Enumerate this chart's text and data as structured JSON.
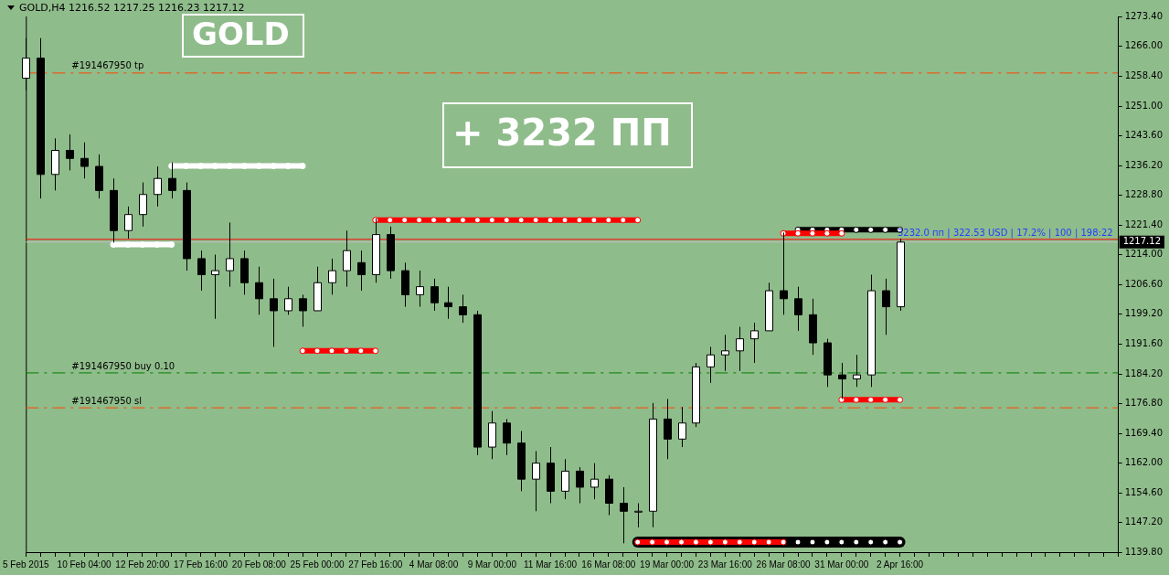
{
  "chart_data": {
    "type": "candlestick",
    "title": "GOLD,H4  1216.52 1217.25 1216.23 1217.12",
    "categories": [
      "5 Feb 2015",
      null,
      null,
      null,
      "10 Feb 04:00",
      null,
      null,
      null,
      "12 Feb 20:00",
      null,
      null,
      null,
      "17 Feb 16:00",
      null,
      null,
      null,
      "20 Feb 08:00",
      null,
      null,
      null,
      "25 Feb 00:00",
      null,
      null,
      null,
      "27 Feb 16:00",
      null,
      null,
      null,
      "4 Mar 08:00",
      null,
      null,
      null,
      "9 Mar 00:00",
      null,
      null,
      null,
      "11 Mar 16:00",
      null,
      null,
      null,
      "16 Mar 08:00",
      null,
      null,
      null,
      "19 Mar 00:00",
      null,
      null,
      null,
      "23 Mar 16:00",
      null,
      null,
      null,
      "26 Mar 08:00",
      null,
      null,
      null,
      "31 Mar 00:00",
      null,
      null,
      null,
      "2 Apr 16:00",
      null,
      null,
      null,
      null,
      null,
      null,
      null,
      null,
      null,
      null,
      null,
      null,
      null,
      null,
      null
    ],
    "ohlc": [
      [
        1258,
        1268,
        1255,
        1263
      ],
      [
        1263,
        1268,
        1228,
        1234
      ],
      [
        1234,
        1243,
        1230,
        1240
      ],
      [
        1240,
        1244,
        1235,
        1238
      ],
      [
        1238,
        1242,
        1233,
        1236
      ],
      [
        1236,
        1239,
        1228,
        1230
      ],
      [
        1230,
        1233,
        1217,
        1220
      ],
      [
        1220,
        1226,
        1218,
        1224
      ],
      [
        1224,
        1232,
        1221,
        1229
      ],
      [
        1229,
        1236,
        1226,
        1233
      ],
      [
        1233,
        1237,
        1228,
        1230
      ],
      [
        1230,
        1232,
        1210,
        1213
      ],
      [
        1213,
        1215,
        1205,
        1209
      ],
      [
        1209,
        1214,
        1198,
        1210
      ],
      [
        1210,
        1222,
        1206,
        1213
      ],
      [
        1213,
        1215,
        1204,
        1207
      ],
      [
        1207,
        1211,
        1199,
        1203
      ],
      [
        1203,
        1208,
        1191,
        1200
      ],
      [
        1200,
        1206,
        1199,
        1203
      ],
      [
        1203,
        1204,
        1196,
        1200
      ],
      [
        1200,
        1211,
        1200,
        1207
      ],
      [
        1207,
        1213,
        1204,
        1210
      ],
      [
        1210,
        1220,
        1206,
        1215
      ],
      [
        1212,
        1215,
        1205,
        1209
      ],
      [
        1209,
        1223,
        1207,
        1219
      ],
      [
        1219,
        1221,
        1208,
        1210
      ],
      [
        1210,
        1212,
        1201,
        1204
      ],
      [
        1204,
        1210,
        1201,
        1206
      ],
      [
        1206,
        1208,
        1200,
        1202
      ],
      [
        1202,
        1206,
        1198,
        1201
      ],
      [
        1201,
        1204,
        1197,
        1199
      ],
      [
        1199,
        1200,
        1164,
        1166
      ],
      [
        1166,
        1175,
        1163,
        1172
      ],
      [
        1172,
        1173,
        1164,
        1167
      ],
      [
        1167,
        1170,
        1155,
        1158
      ],
      [
        1158,
        1165,
        1150,
        1162
      ],
      [
        1162,
        1166,
        1152,
        1155
      ],
      [
        1155,
        1163,
        1153,
        1160
      ],
      [
        1160,
        1161,
        1152,
        1156
      ],
      [
        1156,
        1162,
        1153,
        1158
      ],
      [
        1158,
        1159,
        1149,
        1152
      ],
      [
        1152,
        1156,
        1142,
        1150
      ],
      [
        1150,
        1152,
        1146,
        1150
      ],
      [
        1150,
        1177,
        1146,
        1173
      ],
      [
        1173,
        1178,
        1163,
        1168
      ],
      [
        1168,
        1176,
        1166,
        1172
      ],
      [
        1172,
        1187,
        1171,
        1186
      ],
      [
        1186,
        1191,
        1182,
        1189
      ],
      [
        1189,
        1194,
        1185,
        1190
      ],
      [
        1190,
        1196,
        1185,
        1193
      ],
      [
        1193,
        1197,
        1187,
        1195
      ],
      [
        1195,
        1207,
        1195,
        1205
      ],
      [
        1205,
        1219.5,
        1199,
        1203
      ],
      [
        1203,
        1206,
        1195,
        1199
      ],
      [
        1199,
        1203,
        1189,
        1192
      ],
      [
        1192,
        1193,
        1181,
        1184
      ],
      [
        1184,
        1187,
        1178,
        1183
      ],
      [
        1183,
        1189,
        1181,
        1184
      ],
      [
        1184,
        1209,
        1181,
        1205
      ],
      [
        1205,
        1208,
        1194,
        1201
      ],
      [
        1201,
        1218,
        1200,
        1217.12
      ],
      null,
      null,
      null,
      null,
      null,
      null,
      null,
      null,
      null,
      null,
      null,
      null,
      null,
      null,
      null
    ],
    "series": [
      {
        "type": "line",
        "color": "#000000",
        "values": [
          null,
          null,
          null,
          null,
          null,
          null,
          null,
          null,
          null,
          null,
          null,
          null,
          null,
          null,
          null,
          null,
          null,
          null,
          null,
          null,
          null,
          null,
          null,
          null,
          null,
          null,
          null,
          null,
          null,
          null,
          null,
          null,
          null,
          null,
          null,
          null,
          null,
          null,
          null,
          null,
          null,
          null,
          1142.3,
          1142.3,
          1142.3,
          1142.3,
          1142.3,
          1142.3,
          1142.3,
          1142.3,
          1142.3,
          1142.3,
          1142.3,
          1142.3,
          1142.3,
          1142.3,
          1142.3,
          1142.3,
          1142.3,
          1142.3,
          1142.3,
          null,
          null,
          null,
          null,
          null,
          null,
          null,
          null,
          null,
          null,
          null,
          null,
          null,
          null,
          null
        ]
      },
      {
        "type": "line",
        "color": "#000000",
        "values": [
          null,
          null,
          null,
          null,
          null,
          null,
          null,
          null,
          null,
          null,
          null,
          null,
          null,
          null,
          null,
          null,
          null,
          null,
          null,
          null,
          null,
          null,
          null,
          null,
          null,
          null,
          null,
          null,
          null,
          null,
          null,
          null,
          null,
          null,
          null,
          null,
          null,
          null,
          null,
          null,
          null,
          null,
          null,
          null,
          null,
          null,
          null,
          null,
          null,
          null,
          null,
          null,
          null,
          1220.2,
          1220.2,
          1220.2,
          1220.2,
          1220.2,
          1220.2,
          1220.2,
          1220.2,
          null,
          null,
          null,
          null,
          null,
          null,
          null,
          null,
          null,
          null,
          null,
          null,
          null,
          null,
          null
        ]
      },
      {
        "type": "line",
        "color": "#ffffff",
        "values": [
          null,
          null,
          null,
          null,
          null,
          null,
          null,
          null,
          null,
          null,
          1236.1,
          1236.1,
          1236.1,
          1236.1,
          1236.1,
          1236.1,
          1236.1,
          1236.1,
          1236.1,
          1236.1,
          null,
          null,
          null,
          null,
          null,
          null,
          null,
          null,
          null,
          null,
          null,
          null,
          null,
          null,
          null,
          null,
          null,
          null,
          null,
          null,
          null,
          null,
          null,
          null,
          null,
          null,
          null,
          null,
          null,
          null,
          null,
          null,
          null,
          null,
          null,
          null,
          null,
          null,
          null,
          null,
          null,
          null,
          null,
          null,
          null,
          null,
          null,
          null,
          null,
          null,
          null,
          null,
          null,
          null,
          null,
          null
        ]
      },
      {
        "type": "line",
        "color": "#ffffff",
        "values": [
          null,
          null,
          null,
          null,
          null,
          null,
          1216.5,
          1216.5,
          1216.5,
          1216.5,
          1216.5,
          null,
          null,
          null,
          null,
          null,
          null,
          null,
          null,
          null,
          null,
          null,
          null,
          null,
          null,
          null,
          null,
          null,
          null,
          null,
          null,
          null,
          null,
          null,
          null,
          null,
          null,
          null,
          null,
          null,
          null,
          null,
          null,
          null,
          null,
          null,
          null,
          null,
          null,
          null,
          null,
          null,
          null,
          null,
          null,
          null,
          null,
          null,
          null,
          null,
          null,
          null,
          null,
          null,
          null,
          null,
          null,
          null,
          null,
          null,
          null,
          null,
          null,
          null,
          null,
          null
        ]
      },
      {
        "type": "line",
        "color": "#ff0000",
        "values": [
          null,
          null,
          null,
          null,
          null,
          null,
          null,
          null,
          null,
          null,
          null,
          null,
          null,
          null,
          null,
          null,
          null,
          null,
          null,
          1190,
          1190,
          1190,
          1190,
          1190,
          1190,
          null,
          null,
          null,
          null,
          null,
          null,
          null,
          null,
          null,
          null,
          null,
          null,
          null,
          null,
          null,
          null,
          null,
          null,
          null,
          null,
          null,
          null,
          null,
          null,
          null,
          null,
          null,
          null,
          null,
          null,
          null,
          null,
          null,
          null,
          null,
          null,
          null,
          null,
          null,
          null,
          null,
          null,
          null,
          null,
          null,
          null,
          null,
          null,
          null,
          null,
          null
        ]
      },
      {
        "type": "line",
        "color": "#ff0000",
        "values": [
          null,
          null,
          null,
          null,
          null,
          null,
          null,
          null,
          null,
          null,
          null,
          null,
          null,
          null,
          null,
          null,
          null,
          null,
          null,
          null,
          null,
          null,
          null,
          null,
          1222.6,
          1222.6,
          1222.6,
          1222.6,
          1222.6,
          1222.6,
          1222.6,
          1222.6,
          1222.6,
          1222.6,
          1222.6,
          1222.6,
          1222.6,
          1222.6,
          1222.6,
          1222.6,
          1222.6,
          1222.6,
          1222.6,
          null,
          null,
          null,
          null,
          null,
          null,
          null,
          null,
          null,
          null,
          null,
          null,
          null,
          null,
          null,
          null,
          null,
          null,
          null,
          null,
          null,
          null,
          null,
          null,
          null,
          null,
          null,
          null,
          null,
          null,
          null,
          null,
          null
        ]
      },
      {
        "type": "line",
        "color": "#ff0000",
        "values": [
          null,
          null,
          null,
          null,
          null,
          null,
          null,
          null,
          null,
          null,
          null,
          null,
          null,
          null,
          null,
          null,
          null,
          null,
          null,
          null,
          null,
          null,
          null,
          null,
          null,
          null,
          null,
          null,
          null,
          null,
          null,
          null,
          null,
          null,
          null,
          null,
          null,
          null,
          null,
          null,
          null,
          null,
          null,
          null,
          null,
          null,
          null,
          null,
          null,
          null,
          null,
          null,
          1219.3,
          1219.3,
          1219.3,
          1219.3,
          1219.3,
          null,
          null,
          null,
          null,
          null,
          null,
          null,
          null,
          null,
          null,
          null,
          null,
          null,
          null,
          null,
          null,
          null,
          null,
          null
        ]
      },
      {
        "type": "line",
        "color": "#ff0000",
        "values": [
          null,
          null,
          null,
          null,
          null,
          null,
          null,
          null,
          null,
          null,
          null,
          null,
          null,
          null,
          null,
          null,
          null,
          null,
          null,
          null,
          null,
          null,
          null,
          null,
          null,
          null,
          null,
          null,
          null,
          null,
          null,
          null,
          null,
          null,
          null,
          null,
          null,
          null,
          null,
          null,
          null,
          null,
          1142.3,
          1142.3,
          1142.3,
          1142.3,
          1142.3,
          1142.3,
          1142.3,
          1142.3,
          1142.3,
          1142.3,
          1142.3,
          null,
          null,
          null,
          null,
          null,
          null,
          null,
          null,
          null,
          null,
          null,
          null,
          null,
          null,
          null,
          null,
          null,
          null,
          null,
          null,
          null,
          null,
          null
        ]
      },
      {
        "type": "line",
        "color": "#ff0000",
        "values": [
          null,
          null,
          null,
          null,
          null,
          null,
          null,
          null,
          null,
          null,
          null,
          null,
          null,
          null,
          null,
          null,
          null,
          null,
          null,
          null,
          null,
          null,
          null,
          null,
          null,
          null,
          null,
          null,
          null,
          null,
          null,
          null,
          null,
          null,
          null,
          null,
          null,
          null,
          null,
          null,
          null,
          null,
          null,
          null,
          null,
          null,
          null,
          null,
          null,
          null,
          null,
          null,
          null,
          null,
          null,
          null,
          1177.8,
          1177.8,
          1177.8,
          1177.8,
          1177.8,
          null,
          null,
          null,
          null,
          null,
          null,
          null,
          null,
          null,
          null,
          null,
          null,
          null,
          null,
          null
        ]
      }
    ],
    "marker": "circle",
    "ylim": [
      1139.8,
      1273.4
    ],
    "yticks": [
      {
        "value": 1139.8,
        "label": "1139.80"
      },
      {
        "value": 1147.2,
        "label": "1147.20"
      },
      {
        "value": 1154.6,
        "label": "1154.60"
      },
      {
        "value": 1162,
        "label": "1162.00"
      },
      {
        "value": 1169.4,
        "label": "1169.40"
      },
      {
        "value": 1176.8,
        "label": "1176.80"
      },
      {
        "value": 1184.2,
        "label": "1184.20"
      },
      {
        "value": 1191.6,
        "label": "1191.60"
      },
      {
        "value": 1199.2,
        "label": "1199.20"
      },
      {
        "value": 1206.6,
        "label": "1206.60"
      },
      {
        "value": 1214,
        "label": "1214.00"
      },
      {
        "value": 1221.4,
        "label": "1221.40"
      },
      {
        "value": 1228.8,
        "label": "1228.80"
      },
      {
        "value": 1236.2,
        "label": "1236.20"
      },
      {
        "value": 1243.6,
        "label": "1243.60"
      },
      {
        "value": 1251,
        "label": "1251.00"
      },
      {
        "value": 1258.4,
        "label": "1258.40"
      },
      {
        "value": 1266,
        "label": "1266.00"
      },
      {
        "value": 1273.4,
        "label": "1273.40"
      }
    ],
    "ref_lines": [
      {
        "axis": "y",
        "value": 1259.3,
        "label": "#191467950 tp",
        "color": "#ff4500",
        "line_style": "dashed"
      },
      {
        "axis": "y",
        "value": 1184.5,
        "label": "#191467950 buy 0.10",
        "color": "#008000",
        "line_style": "dashed"
      },
      {
        "axis": "y",
        "value": 1175.8,
        "label": "#191467950 sl",
        "color": "#ff4500",
        "line_style": "dashed"
      },
      {
        "axis": "y",
        "value": 1217.8,
        "color": "#ff0000",
        "line_style": "solid"
      },
      {
        "axis": "y",
        "value": 1217.12,
        "label": "1217.12",
        "color": "#c0c0c0",
        "line_style": "solid"
      }
    ],
    "annotations": [
      "GOLD",
      "+ 3232 ПП",
      "3232.0 пп | 322.53 USD | 17.2% | 100 | 198:22"
    ],
    "grid": false,
    "legend": false
  }
}
